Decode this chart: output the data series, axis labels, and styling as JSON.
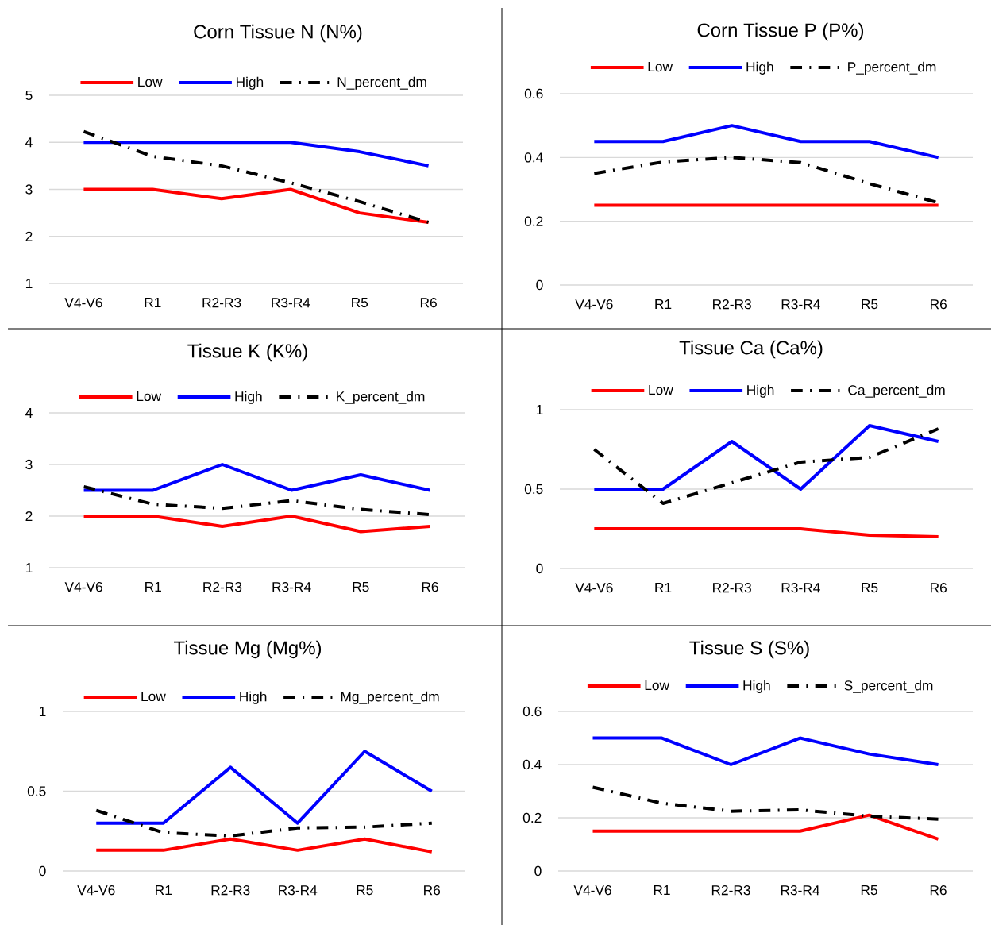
{
  "chart_data": [
    {
      "type": "line",
      "title": "Corn Tissue N (N%)",
      "categories": [
        "V4-V6",
        "R1",
        "R2-R3",
        "R3-R4",
        "R5",
        "R6"
      ],
      "ylim": [
        1,
        5
      ],
      "yticks": [
        1,
        2,
        3,
        4,
        5
      ],
      "grid": "y",
      "legend": "top",
      "series": [
        {
          "name": "Low",
          "color": "#ff0000",
          "values": [
            3,
            3,
            2.8,
            3,
            2.5,
            2.3
          ]
        },
        {
          "name": "High",
          "color": "#0000ff",
          "values": [
            4,
            4,
            4,
            4,
            3.8,
            3.5
          ]
        },
        {
          "name": "N_percent_dm",
          "color": "#000000",
          "line_style": "dashdot",
          "values": [
            4.23,
            3.7,
            3.5,
            3.14,
            2.74,
            2.3
          ]
        }
      ]
    },
    {
      "type": "line",
      "title": "Corn Tissue P (P%)",
      "categories": [
        "V4-V6",
        "R1",
        "R2-R3",
        "R3-R4",
        "R5",
        "R6"
      ],
      "ylim": [
        0,
        0.6
      ],
      "yticks": [
        0,
        0.2,
        0.4,
        0.6
      ],
      "grid": "y",
      "legend": "top",
      "series": [
        {
          "name": "Low",
          "color": "#ff0000",
          "values": [
            0.25,
            0.25,
            0.25,
            0.25,
            0.25,
            0.25
          ]
        },
        {
          "name": "High",
          "color": "#0000ff",
          "values": [
            0.45,
            0.45,
            0.5,
            0.45,
            0.45,
            0.4
          ]
        },
        {
          "name": "P_percent_dm",
          "color": "#000000",
          "line_style": "dashdot",
          "values": [
            0.35,
            0.386,
            0.4,
            0.384,
            0.318,
            0.258
          ]
        }
      ]
    },
    {
      "type": "line",
      "title": "Tissue K (K%)",
      "categories": [
        "V4-V6",
        "R1",
        "R2-R3",
        "R3-R4",
        "R5",
        "R6"
      ],
      "ylim": [
        1,
        4
      ],
      "yticks": [
        1,
        2,
        3,
        4
      ],
      "grid": "y",
      "legend": "top",
      "series": [
        {
          "name": "Low",
          "color": "#ff0000",
          "values": [
            2,
            2,
            1.8,
            2,
            1.7,
            1.8
          ]
        },
        {
          "name": "High",
          "color": "#0000ff",
          "values": [
            2.5,
            2.5,
            3,
            2.5,
            2.8,
            2.5
          ]
        },
        {
          "name": "K_percent_dm",
          "color": "#000000",
          "line_style": "dashdot",
          "values": [
            2.57,
            2.23,
            2.15,
            2.3,
            2.13,
            2.03
          ]
        }
      ]
    },
    {
      "type": "line",
      "title": "Tissue Ca (Ca%)",
      "categories": [
        "V4-V6",
        "R1",
        "R2-R3",
        "R3-R4",
        "R5",
        "R6"
      ],
      "ylim": [
        0,
        1
      ],
      "yticks": [
        0,
        0.5,
        1
      ],
      "grid": "y",
      "legend": "top",
      "series": [
        {
          "name": "Low",
          "color": "#ff0000",
          "values": [
            0.25,
            0.25,
            0.25,
            0.25,
            0.21,
            0.2
          ]
        },
        {
          "name": "High",
          "color": "#0000ff",
          "values": [
            0.5,
            0.5,
            0.8,
            0.5,
            0.9,
            0.8
          ]
        },
        {
          "name": "Ca_percent_dm",
          "color": "#000000",
          "line_style": "dashdot",
          "values": [
            0.75,
            0.41,
            0.54,
            0.67,
            0.7,
            0.88
          ]
        }
      ]
    },
    {
      "type": "line",
      "title": "Tissue Mg (Mg%)",
      "categories": [
        "V4-V6",
        "R1",
        "R2-R3",
        "R3-R4",
        "R5",
        "R6"
      ],
      "ylim": [
        0,
        1
      ],
      "yticks": [
        0,
        0.5,
        1
      ],
      "grid": "y",
      "legend": "top",
      "series": [
        {
          "name": "Low",
          "color": "#ff0000",
          "values": [
            0.13,
            0.13,
            0.2,
            0.13,
            0.2,
            0.12
          ]
        },
        {
          "name": "High",
          "color": "#0000ff",
          "values": [
            0.3,
            0.3,
            0.65,
            0.3,
            0.75,
            0.5
          ]
        },
        {
          "name": "Mg_percent_dm",
          "color": "#000000",
          "line_style": "dashdot",
          "values": [
            0.38,
            0.24,
            0.22,
            0.27,
            0.275,
            0.3
          ]
        }
      ]
    },
    {
      "type": "line",
      "title": "Tissue S (S%)",
      "categories": [
        "V4-V6",
        "R1",
        "R2-R3",
        "R3-R4",
        "R5",
        "R6"
      ],
      "ylim": [
        0,
        0.6
      ],
      "yticks": [
        0,
        0.2,
        0.4,
        0.6
      ],
      "grid": "y",
      "legend": "top",
      "series": [
        {
          "name": "Low",
          "color": "#ff0000",
          "values": [
            0.15,
            0.15,
            0.15,
            0.15,
            0.21,
            0.12
          ]
        },
        {
          "name": "High",
          "color": "#0000ff",
          "values": [
            0.5,
            0.5,
            0.4,
            0.5,
            0.44,
            0.4
          ]
        },
        {
          "name": "S_percent_dm",
          "color": "#000000",
          "line_style": "dashdot",
          "values": [
            0.315,
            0.255,
            0.225,
            0.23,
            0.206,
            0.195
          ]
        }
      ]
    }
  ]
}
